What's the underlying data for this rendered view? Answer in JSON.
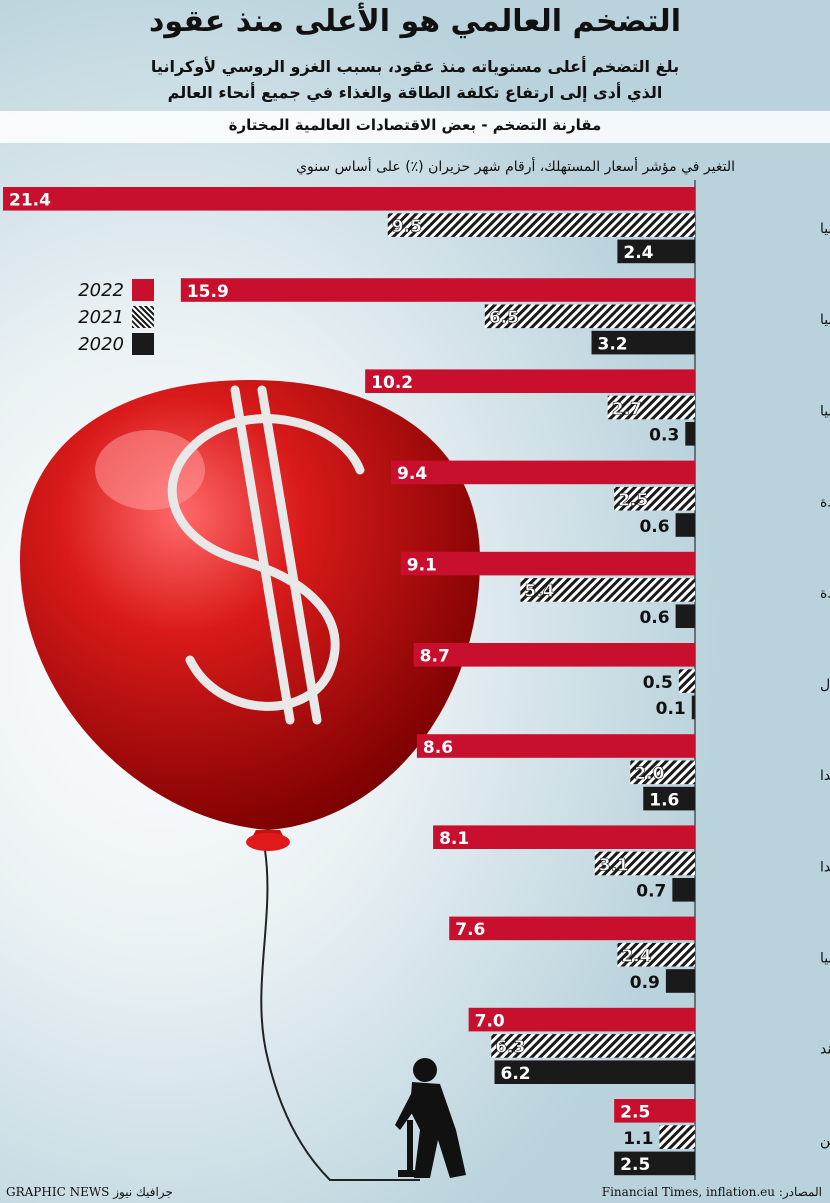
{
  "header": {
    "title": "التضخم العالمي هو الأعلى منذ عقود",
    "subtitle_line1": "بلغ التضخم أعلى مستوياته منذ عقود، بسبب الغزو الروسي لأوكرانيا",
    "subtitle_line2": "الذي أدى إلى ارتفاع تكلفة الطاقة والغذاء في جميع أنحاء العالم",
    "section_title": "مقارنة التضخم - بعض الاقتصادات العالمية المختارة"
  },
  "chart_data": {
    "type": "bar",
    "orientation": "horizontal",
    "subtitle": "التغير في مؤشر أسعار المستهلك، أرقام شهر حزيران (٪) على أساس سنوي",
    "categories": [
      "أوكرانيا",
      "روسيا",
      "إسبانيا",
      "المملكة المتحدة",
      "الولايات المتحدة",
      "البرتغال",
      "هولندا",
      "كندا",
      "ألمانيا",
      "الهند",
      "الصين"
    ],
    "series": [
      {
        "name": "2022",
        "color": "#c8102e",
        "pattern": "solid",
        "values": [
          21.4,
          15.9,
          10.2,
          9.4,
          9.1,
          8.7,
          8.6,
          8.1,
          7.6,
          7.0,
          2.5
        ]
      },
      {
        "name": "2021",
        "color": "#222222",
        "pattern": "hatched",
        "values": [
          9.5,
          6.5,
          2.7,
          2.5,
          5.4,
          0.5,
          2.0,
          3.1,
          2.4,
          6.3,
          1.1
        ]
      },
      {
        "name": "2020",
        "color": "#1a1a1a",
        "pattern": "solid",
        "values": [
          2.4,
          3.2,
          0.3,
          0.6,
          0.6,
          0.1,
          1.6,
          0.7,
          0.9,
          6.2,
          2.5
        ]
      }
    ],
    "value_labels": [
      [
        "21.4",
        "9.5",
        "2.4"
      ],
      [
        "15.9",
        "6.5",
        "3.2"
      ],
      [
        "10.2",
        "2.7",
        "0.3"
      ],
      [
        "9.4",
        "2.5",
        "0.6"
      ],
      [
        "9.1",
        "5.4",
        "0.6"
      ],
      [
        "8.7",
        "0.5",
        "0.1"
      ],
      [
        "8.6",
        "2.0",
        "1.6"
      ],
      [
        "8.1",
        "3.1",
        "0.7"
      ],
      [
        "7.6",
        "2.4",
        "0.9"
      ],
      [
        "7.0",
        "6.3",
        "6.2"
      ],
      [
        "2.5",
        "1.1",
        "2.5"
      ]
    ],
    "xlim": [
      0,
      21.4
    ],
    "grid": false,
    "legend_position": "left"
  },
  "footer": {
    "source": "المصادر: Financial Times, inflation.eu",
    "credit": "GRAPHIC NEWS جرافيك نيوز"
  },
  "illustration": {
    "balloon_icon": "dollar-balloon-icon",
    "person_icon": "person-pump-icon"
  }
}
